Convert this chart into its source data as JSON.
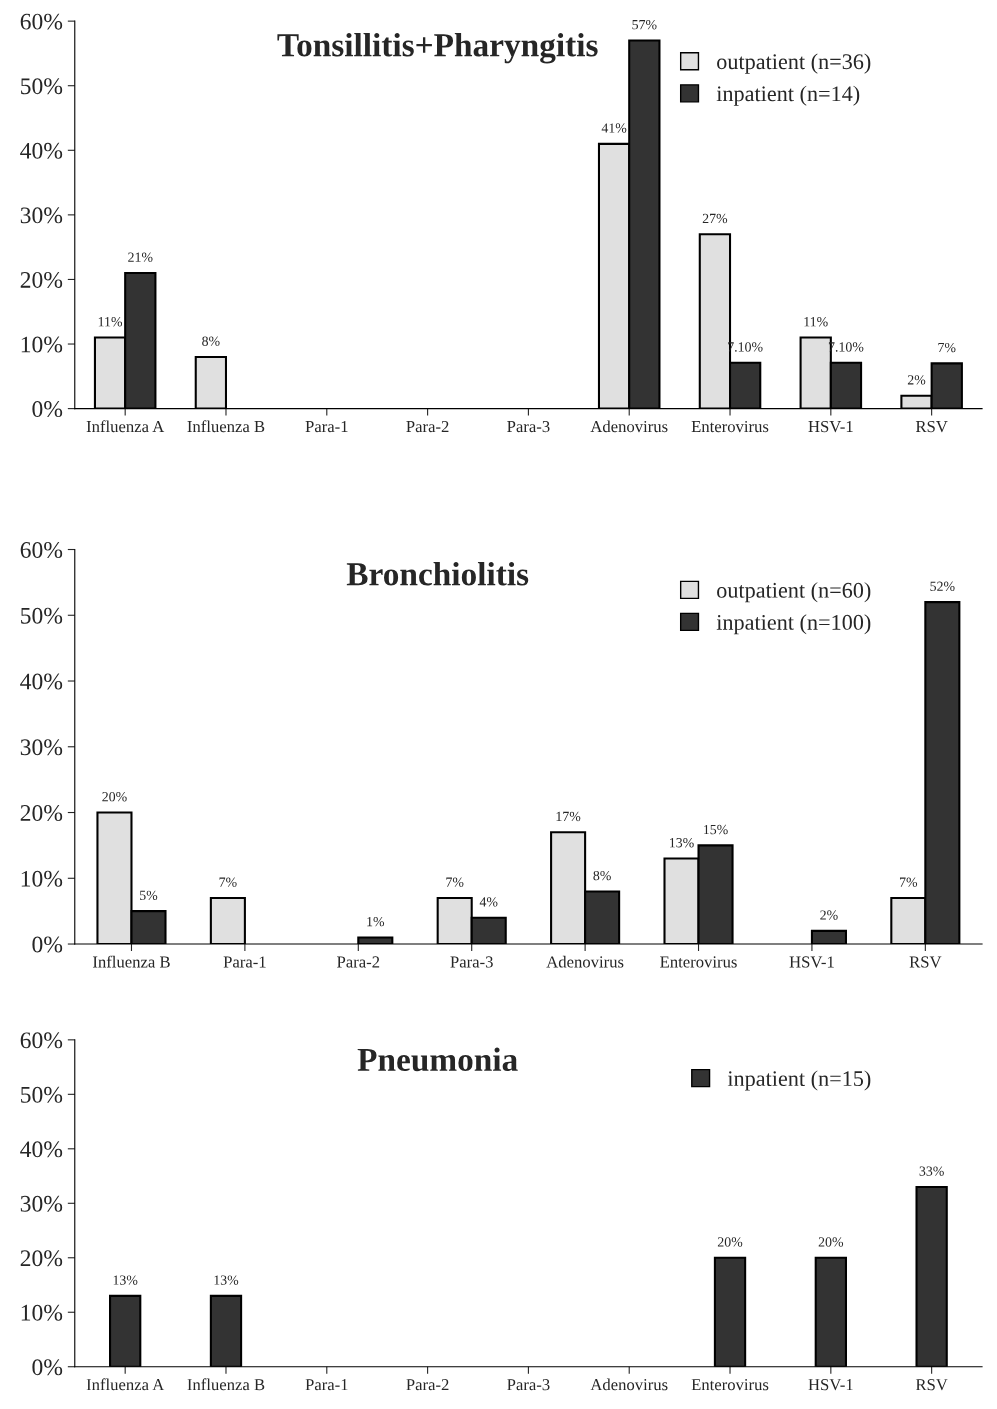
{
  "chart_data": [
    {
      "type": "bar",
      "title": "Tonsillitis+Pharyngitis",
      "categories": [
        "Influenza A",
        "Influenza B",
        "Para-1",
        "Para-2",
        "Para-3",
        "Adenovirus",
        "Enterovirus",
        "HSV-1",
        "RSV"
      ],
      "series": [
        {
          "name": "outpatient (n=36)",
          "color": "#e0e0e0",
          "values": [
            11,
            8,
            null,
            null,
            null,
            41,
            27,
            11,
            2
          ],
          "value_labels": [
            "11%",
            "8%",
            null,
            null,
            null,
            "41%",
            "27%",
            "11%",
            "2%"
          ]
        },
        {
          "name": "inpatient (n=14)",
          "color": "#333333",
          "values": [
            21,
            null,
            null,
            null,
            null,
            57,
            7.1,
            7.1,
            7
          ],
          "value_labels": [
            "21%",
            null,
            null,
            null,
            null,
            "57%",
            "7.10%",
            "7.10%",
            "7%"
          ]
        }
      ],
      "ylim": [
        0,
        60
      ],
      "yticks": [
        {
          "value": 0,
          "label": "0%"
        },
        {
          "value": 10,
          "label": "10%"
        },
        {
          "value": 20,
          "label": "20%"
        },
        {
          "value": 30,
          "label": "30%"
        },
        {
          "value": 40,
          "label": "40%"
        },
        {
          "value": 50,
          "label": "50%"
        },
        {
          "value": 60,
          "label": "60%"
        }
      ],
      "grid": false,
      "legend": "top right"
    },
    {
      "type": "bar",
      "title": "Bronchiolitis",
      "categories": [
        "Influenza B",
        "Para-1",
        "Para-2",
        "Para-3",
        "Adenovirus",
        "Enterovirus",
        "HSV-1",
        "RSV"
      ],
      "series": [
        {
          "name": "outpatient (n=60)",
          "color": "#e0e0e0",
          "values": [
            20,
            7,
            null,
            7,
            17,
            13,
            null,
            7
          ],
          "value_labels": [
            "20%",
            "7%",
            null,
            "7%",
            "17%",
            "13%",
            null,
            "7%"
          ]
        },
        {
          "name": "inpatient (n=100)",
          "color": "#333333",
          "values": [
            5,
            null,
            1,
            4,
            8,
            15,
            2,
            52
          ],
          "value_labels": [
            "5%",
            null,
            "1%",
            "4%",
            "8%",
            "15%",
            "2%",
            "52%"
          ]
        }
      ],
      "ylim": [
        0,
        60
      ],
      "yticks": [
        {
          "value": 0,
          "label": "0%"
        },
        {
          "value": 10,
          "label": "10%"
        },
        {
          "value": 20,
          "label": "20%"
        },
        {
          "value": 30,
          "label": "30%"
        },
        {
          "value": 40,
          "label": "40%"
        },
        {
          "value": 50,
          "label": "50%"
        },
        {
          "value": 60,
          "label": "60%"
        }
      ],
      "grid": false,
      "legend": "top right"
    },
    {
      "type": "bar",
      "title": "Pneumonia",
      "categories": [
        "Influenza A",
        "Influenza B",
        "Para-1",
        "Para-2",
        "Para-3",
        "Adenovirus",
        "Enterovirus",
        "HSV-1",
        "RSV"
      ],
      "series": [
        {
          "name": "inpatient (n=15)",
          "color": "#333333",
          "values": [
            13,
            13,
            null,
            null,
            null,
            null,
            20,
            20,
            33
          ],
          "value_labels": [
            "13%",
            "13%",
            null,
            null,
            null,
            null,
            "20%",
            "20%",
            "33%"
          ]
        }
      ],
      "ylim": [
        0,
        60
      ],
      "yticks": [
        {
          "value": 0,
          "label": "0%"
        },
        {
          "value": 10,
          "label": "10%"
        },
        {
          "value": 20,
          "label": "20%"
        },
        {
          "value": 30,
          "label": "30%"
        },
        {
          "value": 40,
          "label": "40%"
        },
        {
          "value": 50,
          "label": "50%"
        },
        {
          "value": 60,
          "label": "60%"
        }
      ],
      "grid": false,
      "legend": "top right"
    }
  ]
}
